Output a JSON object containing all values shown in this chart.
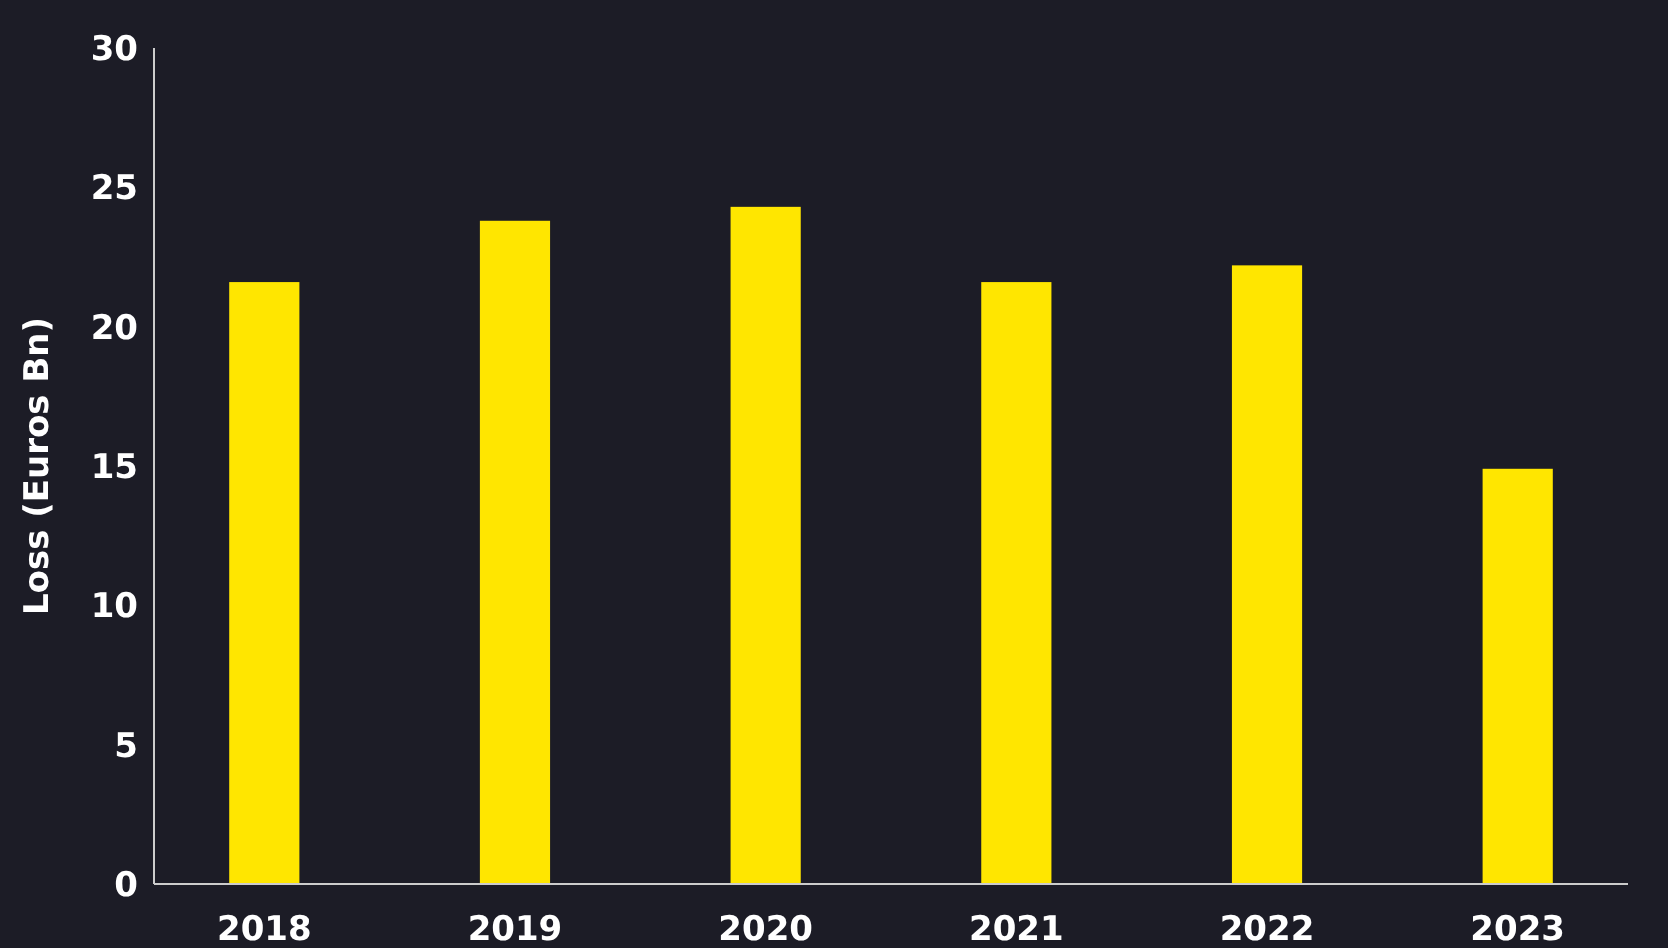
{
  "chart_data": {
    "type": "bar",
    "ylabel": "Loss (Euros Bn)",
    "categories": [
      "2018",
      "2019",
      "2020",
      "2021",
      "2022",
      "2023"
    ],
    "values": [
      21.6,
      23.8,
      24.3,
      21.6,
      22.2,
      14.9
    ],
    "color": "#ffe600",
    "ylim": [
      0,
      30
    ],
    "yticks": [
      0,
      5,
      10,
      15,
      20,
      25,
      30
    ],
    "grid": false
  }
}
